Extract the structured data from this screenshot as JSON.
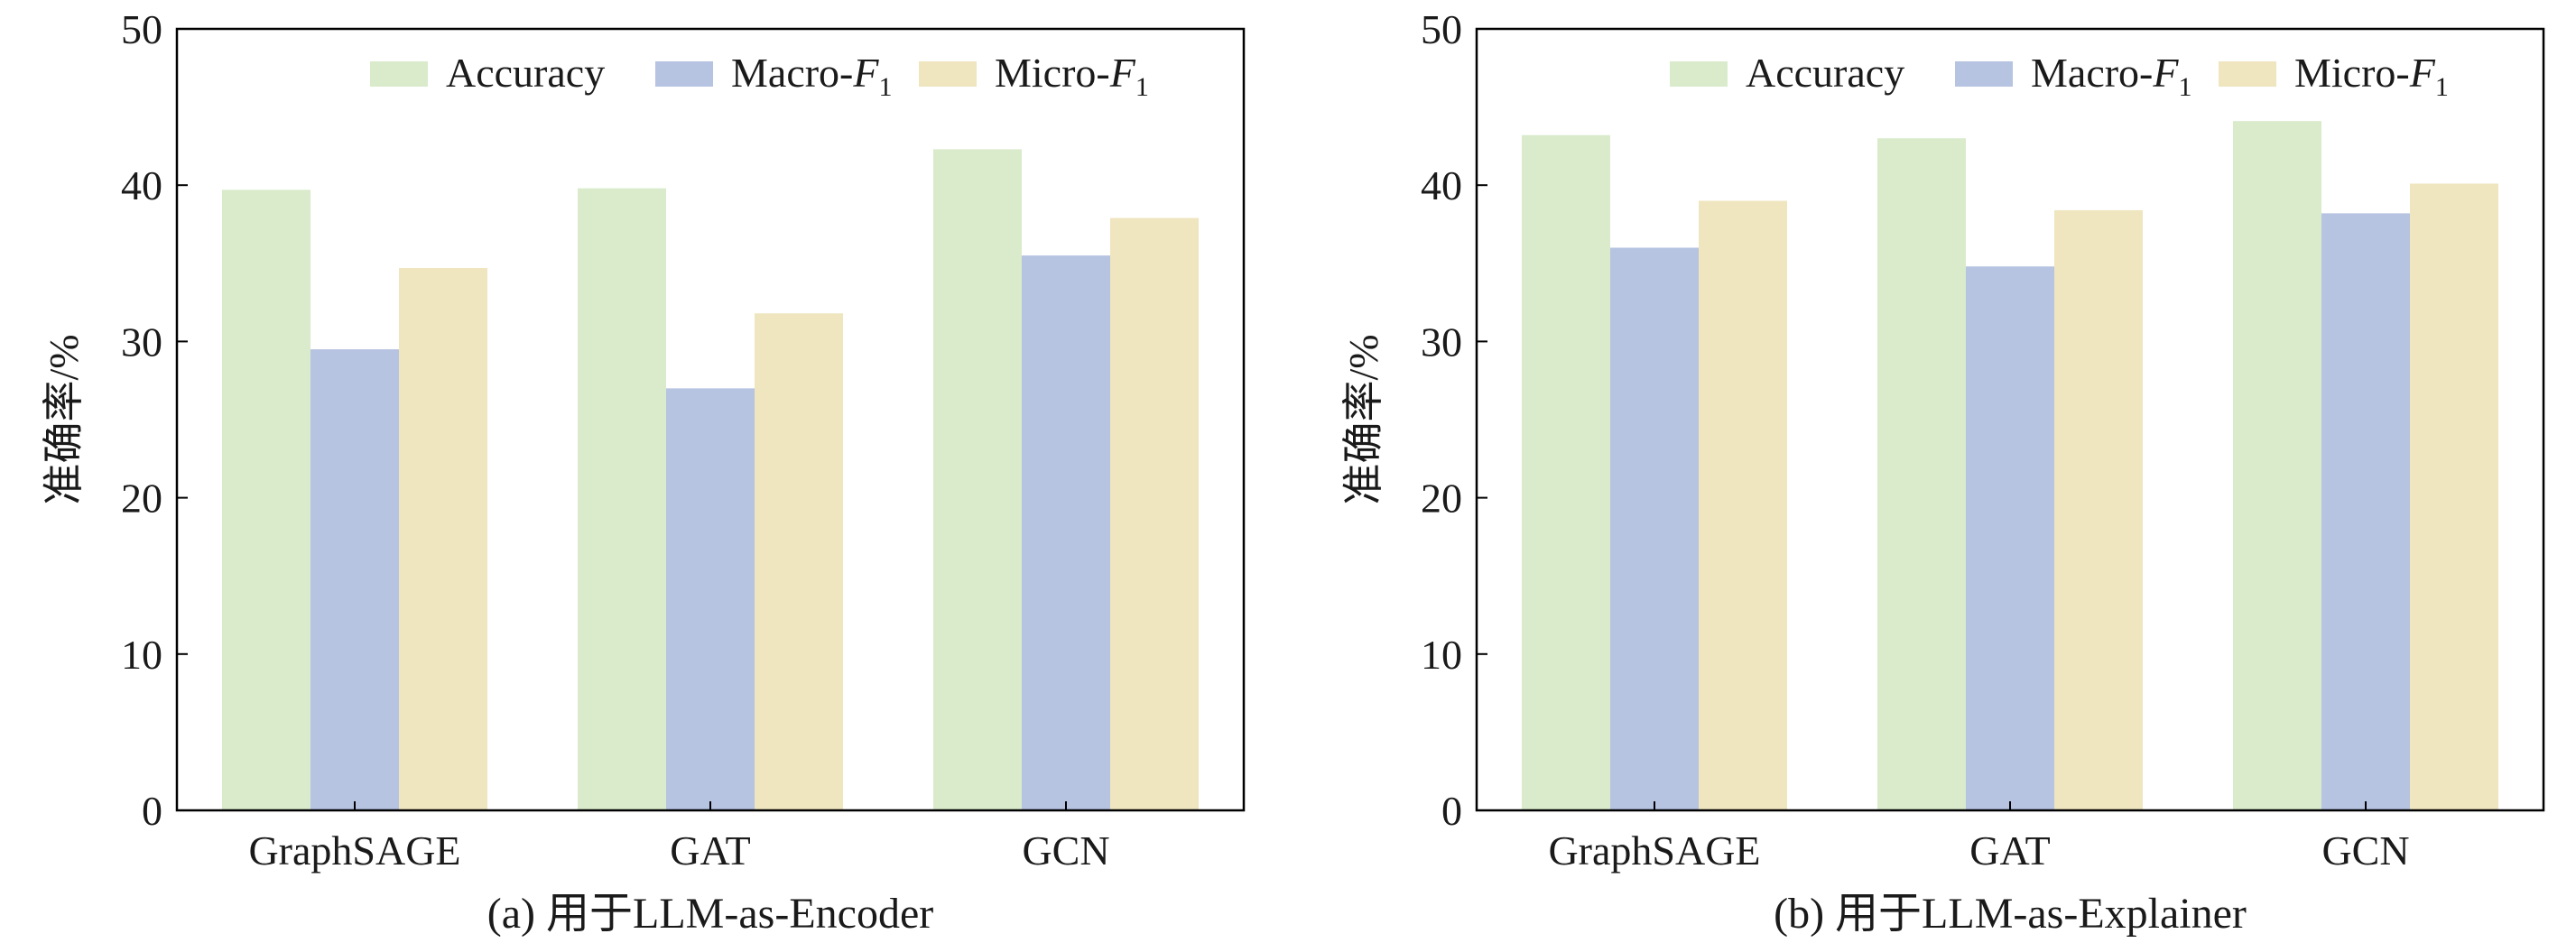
{
  "chart_data": [
    {
      "type": "bar",
      "caption": "(a) 用于LLM-as-Encoder",
      "ylabel": "准确率/%",
      "categories": [
        "GraphSAGE",
        "GAT",
        "GCN"
      ],
      "ylim": [
        0,
        50
      ],
      "yticks": [
        "0",
        "10",
        "20",
        "30",
        "40",
        "50"
      ],
      "legend_position": "top-right",
      "series": [
        {
          "name": "Accuracy",
          "values": [
            39.7,
            39.8,
            42.3
          ]
        },
        {
          "name": "Macro-F1",
          "values": [
            29.5,
            27.0,
            35.5
          ]
        },
        {
          "name": "Micro-F1",
          "values": [
            34.7,
            31.8,
            37.9
          ]
        }
      ]
    },
    {
      "type": "bar",
      "caption": "(b) 用于LLM-as-Explainer",
      "ylabel": "准确率/%",
      "categories": [
        "GraphSAGE",
        "GAT",
        "GCN"
      ],
      "ylim": [
        0,
        50
      ],
      "yticks": [
        "0",
        "10",
        "20",
        "30",
        "40",
        "50"
      ],
      "legend_position": "top-right",
      "series": [
        {
          "name": "Accuracy",
          "values": [
            43.2,
            43.0,
            44.1
          ]
        },
        {
          "name": "Macro-F1",
          "values": [
            36.0,
            34.8,
            38.2
          ]
        },
        {
          "name": "Micro-F1",
          "values": [
            39.0,
            38.4,
            40.1
          ]
        }
      ]
    }
  ],
  "series_colors": [
    "#d9ebcb",
    "#b6c3e1",
    "#efe5bf"
  ]
}
